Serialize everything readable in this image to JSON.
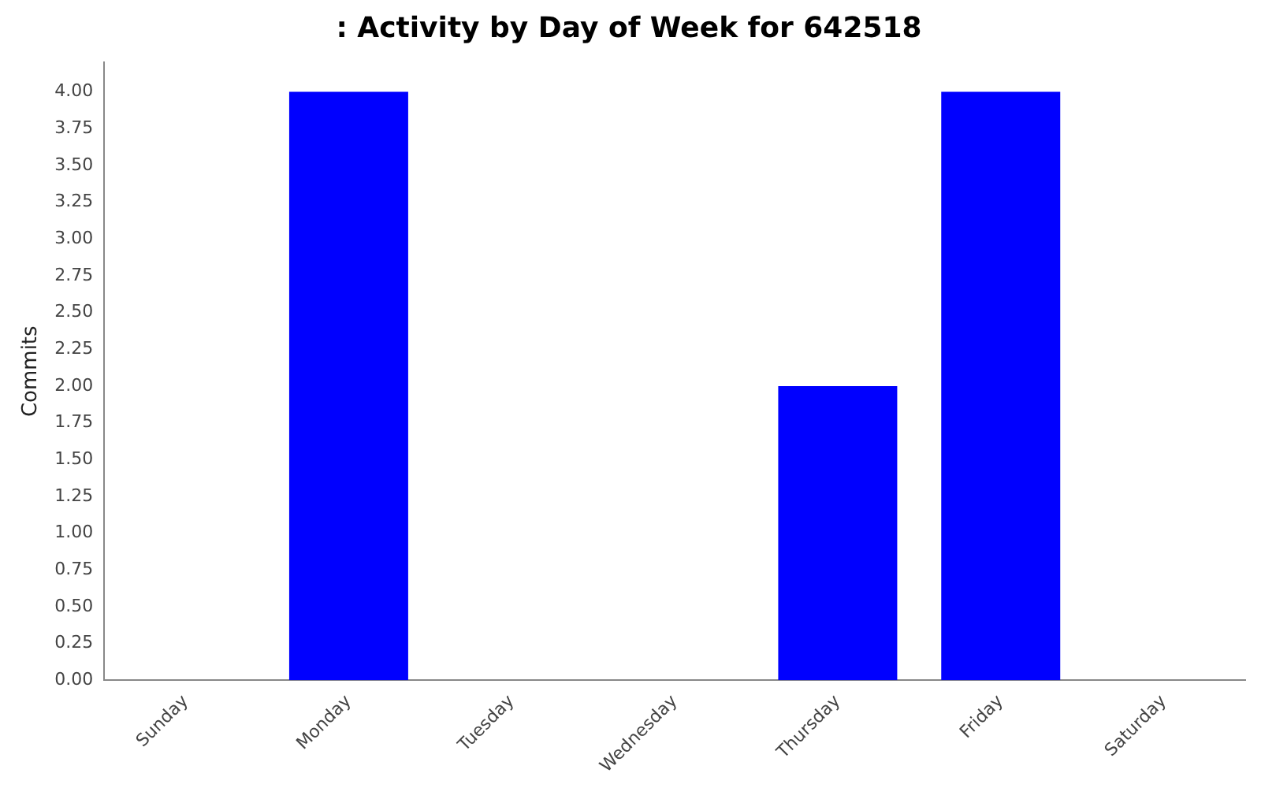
{
  "chart_data": {
    "type": "bar",
    "title": ": Activity by Day of Week for 642518",
    "ylabel": "Commits",
    "categories": [
      "Sunday",
      "Monday",
      "Tuesday",
      "Wednesday",
      "Thursday",
      "Friday",
      "Saturday"
    ],
    "values": [
      0,
      4,
      0,
      0,
      2,
      4,
      0
    ],
    "color": "#0000ff",
    "ylim": [
      0,
      4.2
    ],
    "yticks": [
      {
        "value": 0,
        "label": "0.00"
      },
      {
        "value": 0.25,
        "label": "0.25"
      },
      {
        "value": 0.5,
        "label": "0.50"
      },
      {
        "value": 0.75,
        "label": "0.75"
      },
      {
        "value": 1,
        "label": "1.00"
      },
      {
        "value": 1.25,
        "label": "1.25"
      },
      {
        "value": 1.5,
        "label": "1.50"
      },
      {
        "value": 1.75,
        "label": "1.75"
      },
      {
        "value": 2,
        "label": "2.00"
      },
      {
        "value": 2.25,
        "label": "2.25"
      },
      {
        "value": 2.5,
        "label": "2.50"
      },
      {
        "value": 2.75,
        "label": "2.75"
      },
      {
        "value": 3,
        "label": "3.00"
      },
      {
        "value": 3.25,
        "label": "3.25"
      },
      {
        "value": 3.5,
        "label": "3.50"
      },
      {
        "value": 3.75,
        "label": "3.75"
      },
      {
        "value": 4,
        "label": "4.00"
      }
    ],
    "grid": false,
    "legend": false
  }
}
